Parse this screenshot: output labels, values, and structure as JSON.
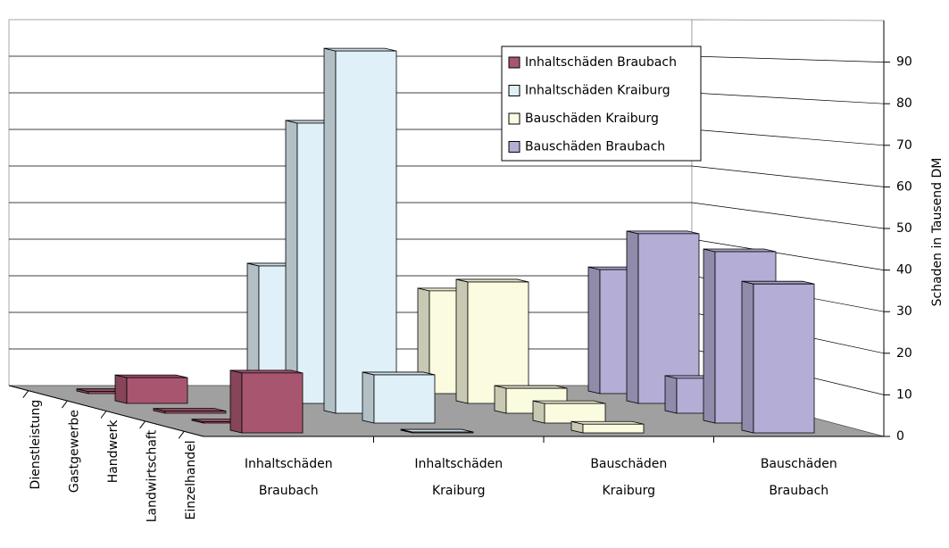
{
  "chart_data": {
    "type": "bar3d",
    "y_label": "Schaden in Tausend DM",
    "ylim": [
      0,
      100
    ],
    "yticks": [
      0,
      10,
      20,
      30,
      40,
      50,
      60,
      70,
      80,
      90
    ],
    "grid": true,
    "legend": "top-right",
    "depth_categories": [
      "Dienstleistung",
      "Gastgewerbe",
      "Handwerk",
      "Landwirtschaft",
      "Einzelhandel"
    ],
    "x_labels": [
      [
        "Inhaltschäden",
        "Braubach"
      ],
      [
        "Inhaltschäden",
        "Kraiburg"
      ],
      [
        "Bauschäden",
        "Kraiburg"
      ],
      [
        "Bauschäden",
        "Braubach"
      ]
    ],
    "series": [
      {
        "name": "Inhaltschäden Braubach",
        "color": "#a8566f",
        "values": [
          0.5,
          6.2,
          0.5,
          0.3,
          14.4
        ]
      },
      {
        "name": "Inhaltschäden Kraiburg",
        "color": "#dff0f8",
        "values": [
          30.7,
          67.4,
          87.1,
          11.6,
          0.2
        ]
      },
      {
        "name": "Bauschäden Kraiburg",
        "color": "#fbfbe0",
        "values": [
          24.7,
          29.2,
          6.0,
          4.7,
          2.1
        ]
      },
      {
        "name": "Bauschäden Braubach",
        "color": "#b4aed6",
        "values": [
          29.8,
          40.8,
          8.4,
          41.2,
          35.8
        ]
      }
    ]
  }
}
